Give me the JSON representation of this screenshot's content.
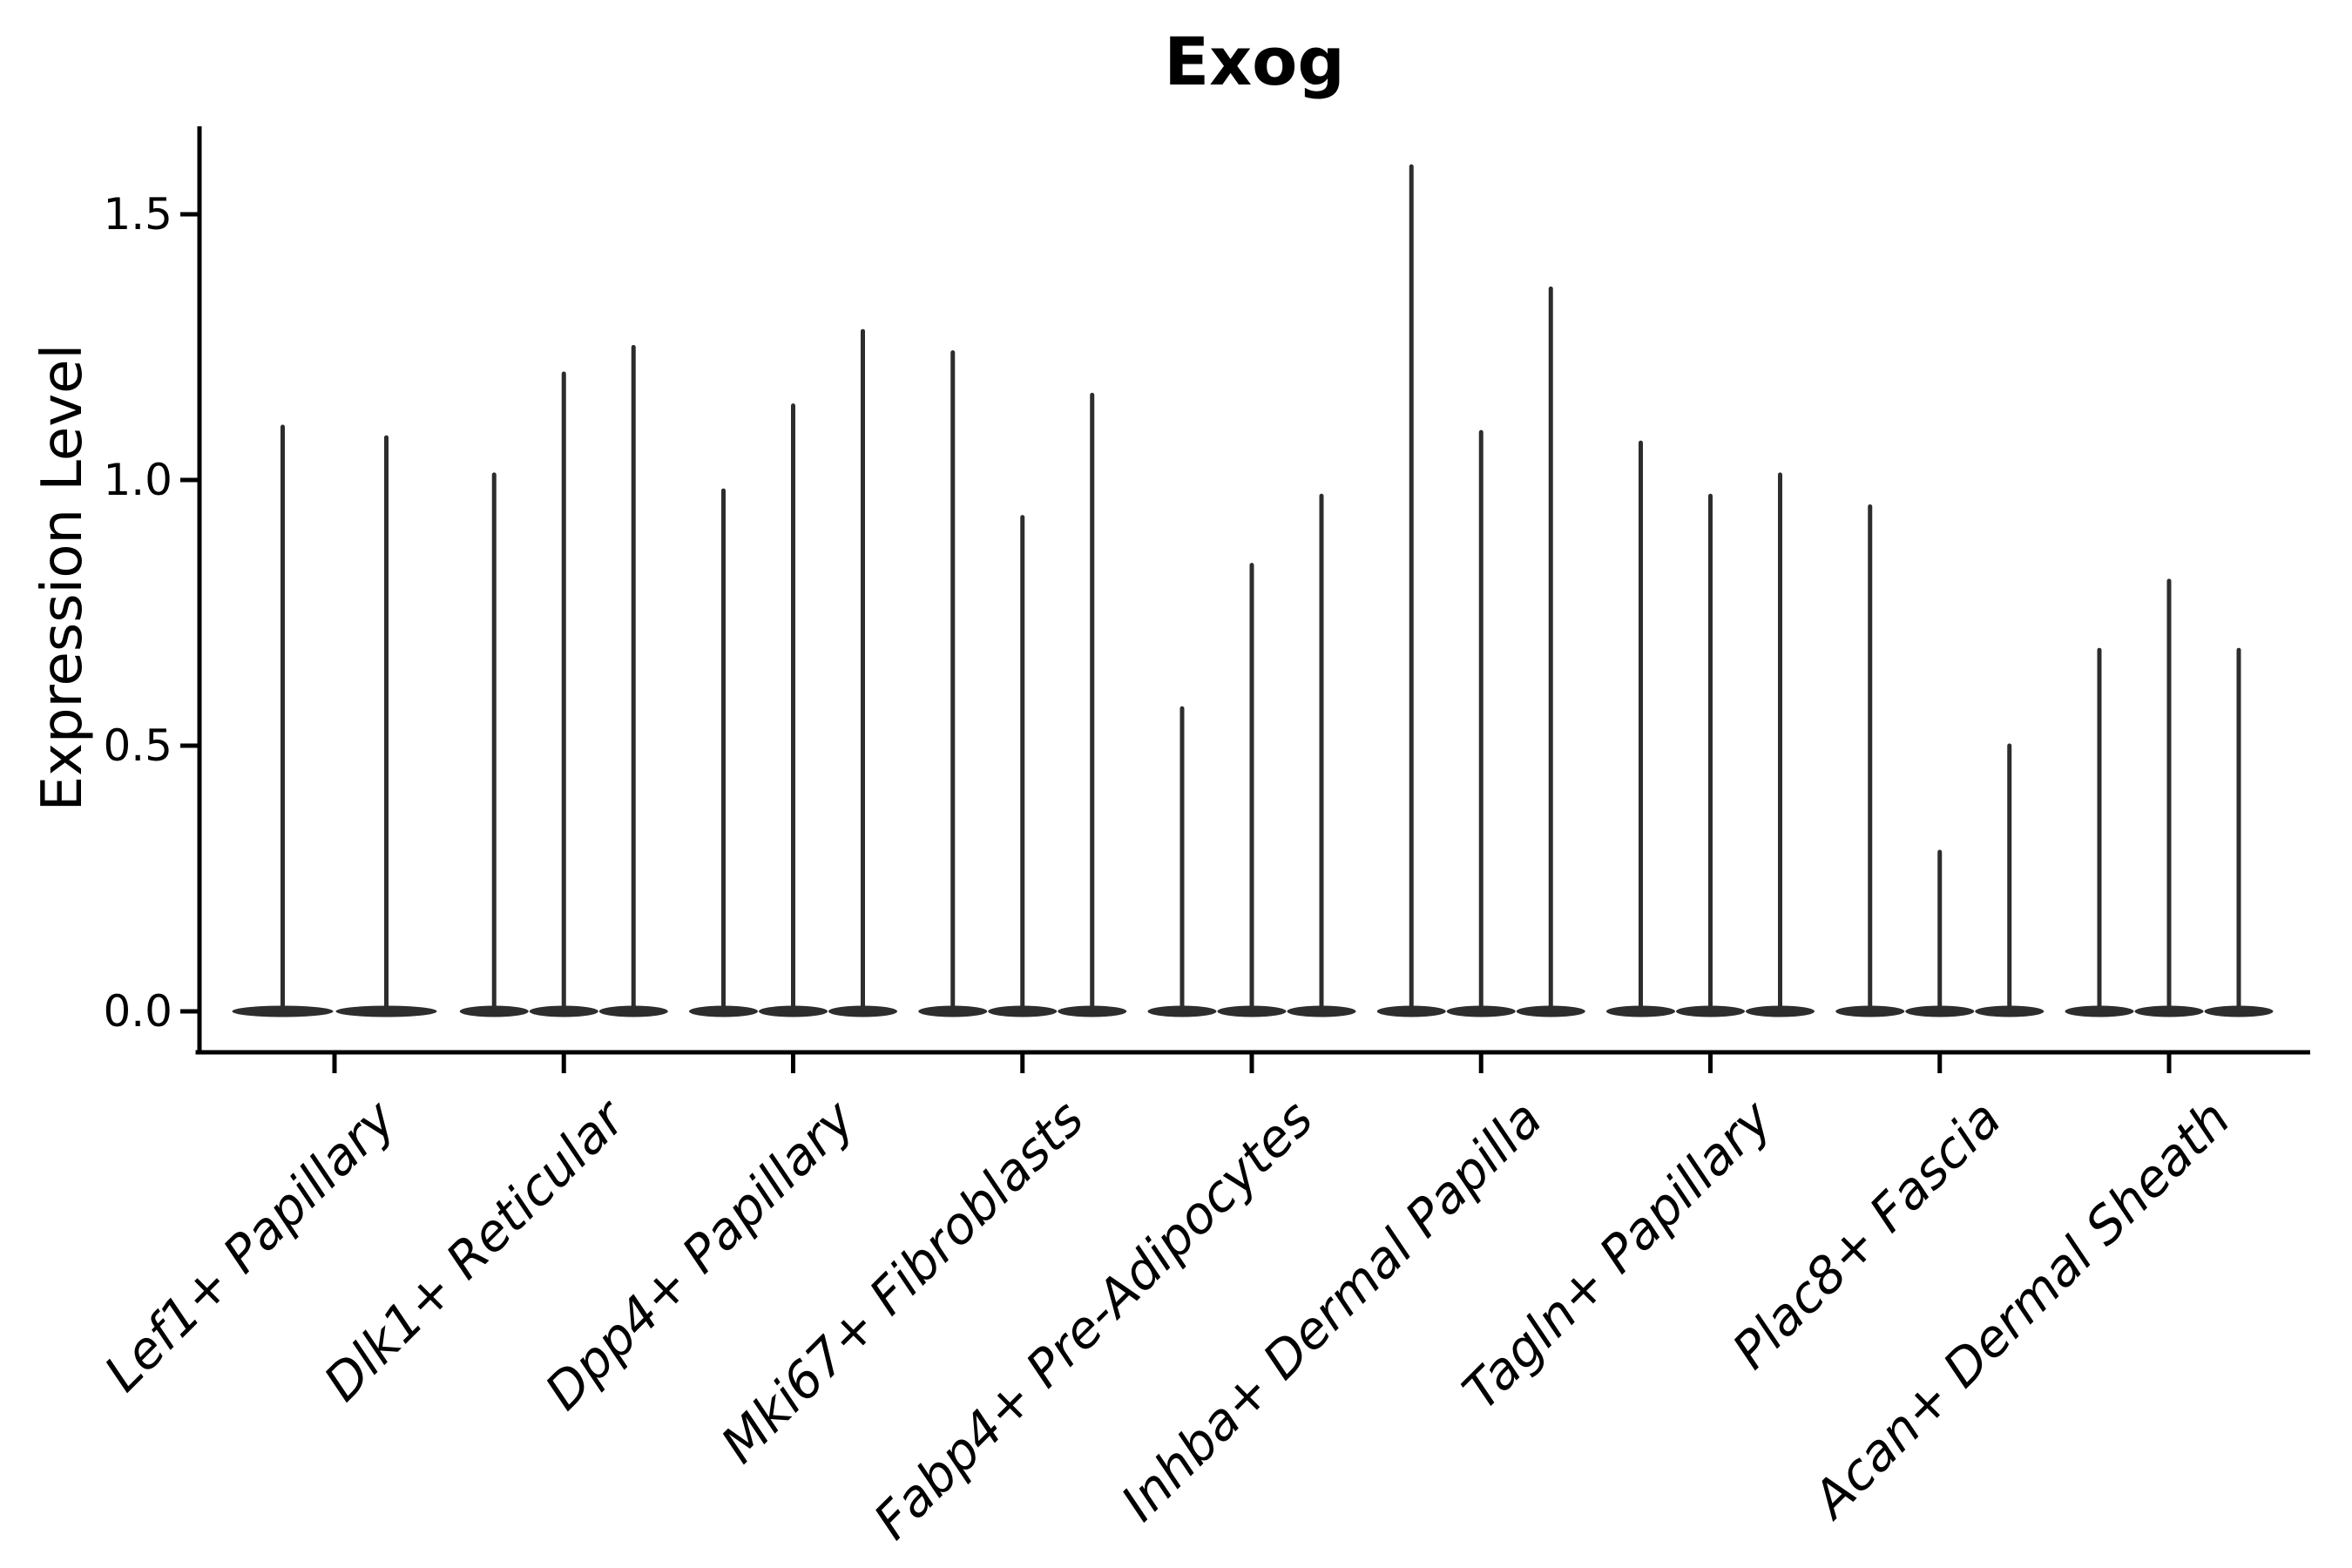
{
  "figure": {
    "background": "#ffffff"
  },
  "chart_data": {
    "type": "violin",
    "title": "Exog",
    "xlabel": "",
    "ylabel": "Expression Level",
    "categories": [
      "Lef1+ Papillary",
      "Dlk1+ Reticular",
      "Dpp4+ Papillary",
      "Mki67+ Fibroblasts",
      "Fabp4+ Pre-Adipocytes",
      "Inhba+ Dermal Papilla",
      "Tagln+ Papillary",
      "Plac8+ Fascia",
      "Acan+ Dermal Sheath"
    ],
    "series": [
      {
        "name": "Lef1+ Papillary",
        "violin_peaks": [
          1.1,
          1.08
        ]
      },
      {
        "name": "Dlk1+ Reticular",
        "violin_peaks": [
          1.01,
          1.2,
          1.25
        ]
      },
      {
        "name": "Dpp4+ Papillary",
        "violin_peaks": [
          0.98,
          1.14,
          1.28
        ]
      },
      {
        "name": "Mki67+ Fibroblasts",
        "violin_peaks": [
          1.24,
          0.93,
          1.16
        ]
      },
      {
        "name": "Fabp4+ Pre-Adipocytes",
        "violin_peaks": [
          0.57,
          0.84,
          0.97
        ]
      },
      {
        "name": "Inhba+ Dermal Papilla",
        "violin_peaks": [
          1.59,
          1.09,
          1.36
        ]
      },
      {
        "name": "Tagln+ Papillary",
        "violin_peaks": [
          1.07,
          0.97,
          1.01
        ]
      },
      {
        "name": "Plac8+ Fascia",
        "violin_peaks": [
          0.95,
          0.3,
          0.5
        ]
      },
      {
        "name": "Acan+ Dermal Sheath",
        "violin_peaks": [
          0.68,
          0.81,
          0.68
        ]
      }
    ],
    "yticks": [
      {
        "value": 0.0,
        "label": "0.0"
      },
      {
        "value": 0.5,
        "label": "0.5"
      },
      {
        "value": 1.0,
        "label": "1.0"
      },
      {
        "value": 1.5,
        "label": "1.5"
      }
    ],
    "ylim": [
      -0.08,
      1.67
    ],
    "grid": false,
    "legend": "none",
    "style": {
      "violin_color": "#2d2d2d",
      "axis_color": "#000000",
      "title_bold": true,
      "xtick_italic": true,
      "xtick_rotation_deg": 45
    }
  }
}
